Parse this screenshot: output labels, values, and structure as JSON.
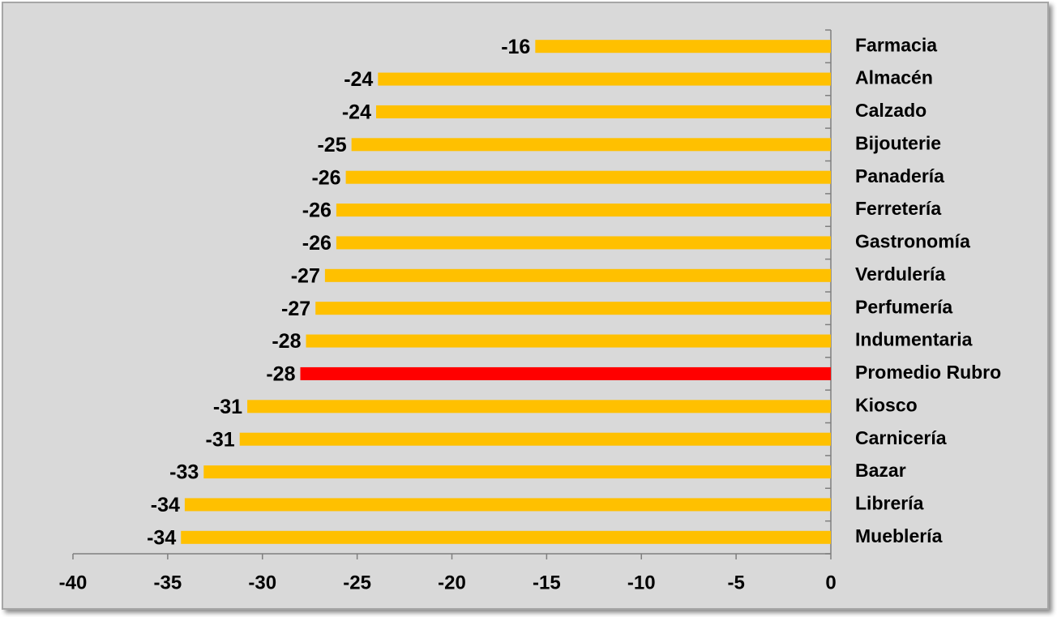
{
  "chart_data": {
    "type": "bar",
    "orientation": "horizontal",
    "categories": [
      "Farmacia",
      "Almacén",
      "Calzado",
      "Bijouterie",
      "Panadería",
      "Ferretería",
      "Gastronomía",
      "Verdulería",
      "Perfumería",
      "Indumentaria",
      "Promedio Rubro",
      "Kiosco",
      "Carnicería",
      "Bazar",
      "Librería",
      "Mueblería"
    ],
    "values": [
      -15.6,
      -23.9,
      -24.0,
      -25.3,
      -25.6,
      -26.1,
      -26.1,
      -26.7,
      -27.2,
      -27.7,
      -28.0,
      -30.8,
      -31.2,
      -33.1,
      -34.1,
      -34.3
    ],
    "value_labels": [
      "-16",
      "-24",
      "-24",
      "-25",
      "-26",
      "-26",
      "-26",
      "-27",
      "-27",
      "-28",
      "-28",
      "-31",
      "-31",
      "-33",
      "-34",
      "-34"
    ],
    "colors": [
      "#ffc000",
      "#ffc000",
      "#ffc000",
      "#ffc000",
      "#ffc000",
      "#ffc000",
      "#ffc000",
      "#ffc000",
      "#ffc000",
      "#ffc000",
      "#ff0000",
      "#ffc000",
      "#ffc000",
      "#ffc000",
      "#ffc000",
      "#ffc000"
    ],
    "xlim": [
      -40,
      0
    ],
    "xticks": [
      -40,
      -35,
      -30,
      -25,
      -20,
      -15,
      -10,
      -5,
      0
    ],
    "grid": false
  }
}
